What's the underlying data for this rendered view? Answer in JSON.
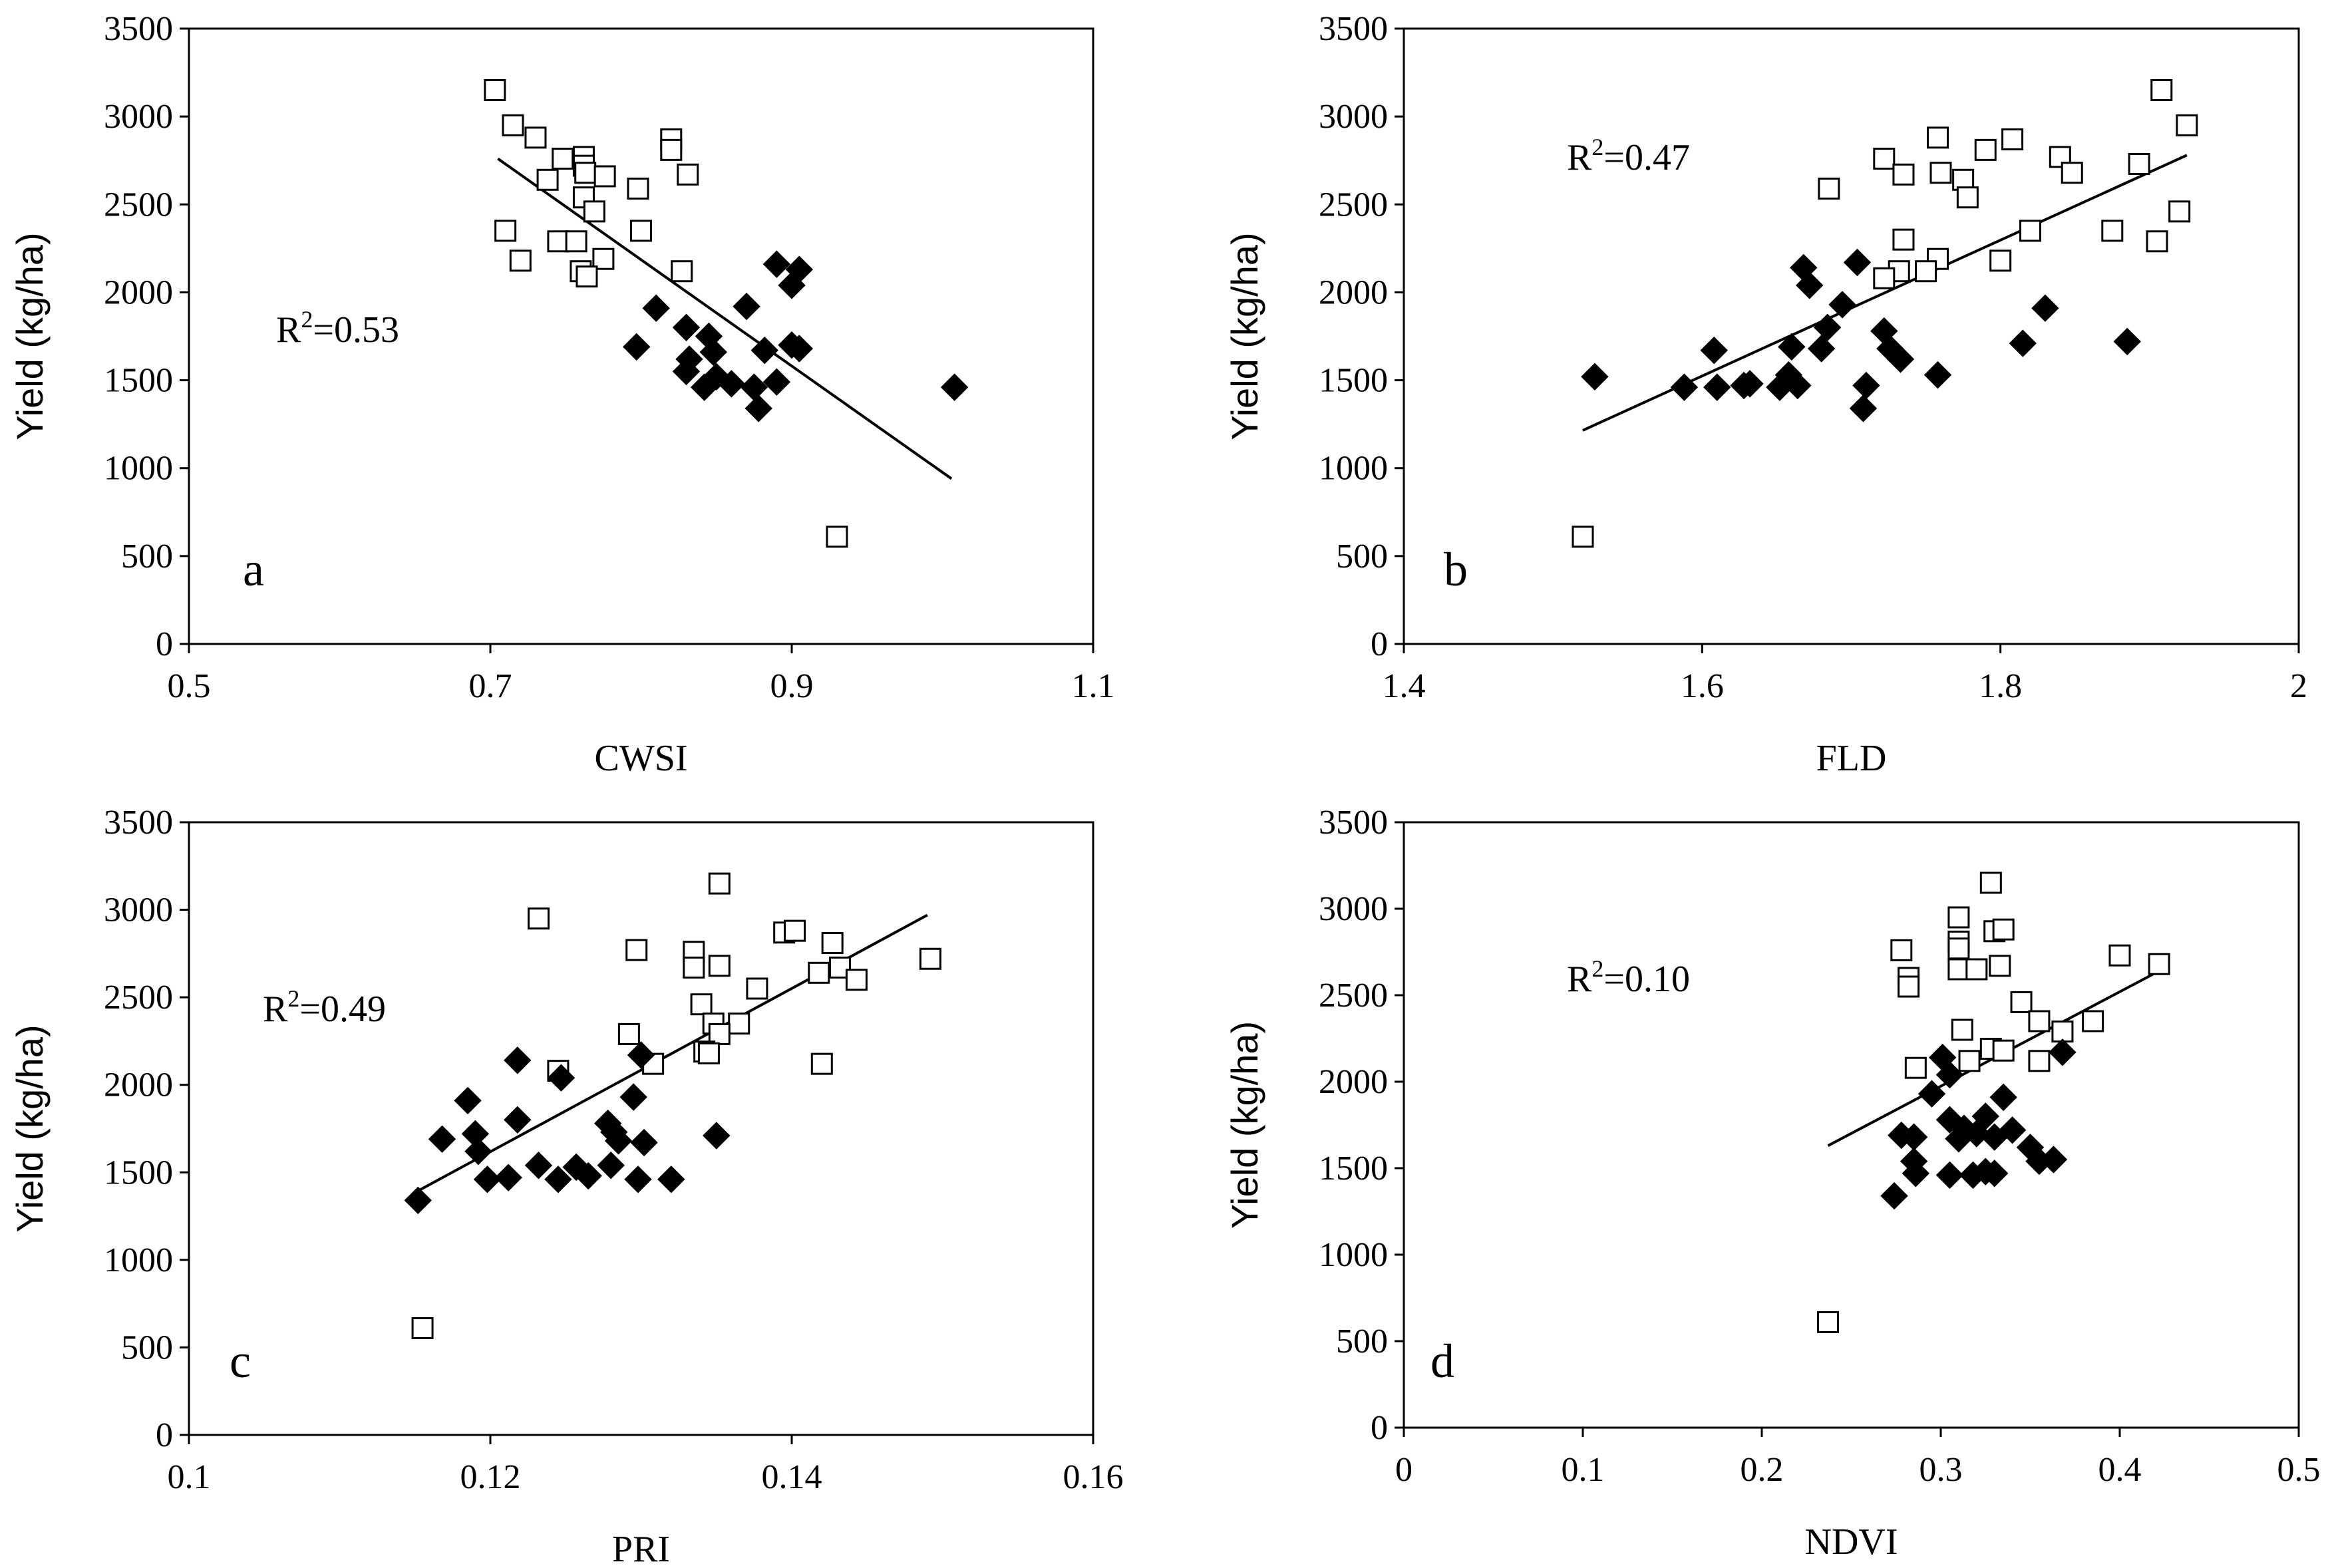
{
  "chart_data": [
    {
      "type": "scatter",
      "panel_letter": "a",
      "xlabel": "CWSI",
      "ylabel": "Yield (kg/ha)",
      "xlim": [
        0.5,
        1.1
      ],
      "ylim": [
        0,
        3500
      ],
      "xticks": [
        "0.5",
        "0.7",
        "0.9",
        "1.1"
      ],
      "yticks": [
        "0",
        "500",
        "1000",
        "1500",
        "2000",
        "2500",
        "3000",
        "3500"
      ],
      "r2_prefix": "R",
      "r2_sup": "2",
      "r2_value": "=0.53",
      "trendline": [
        [
          0.705,
          2760
        ],
        [
          1.006,
          940
        ]
      ],
      "series": [
        {
          "name": "open squares",
          "points": [
            [
              0.703,
              3150
            ],
            [
              0.715,
              2950
            ],
            [
              0.73,
              2880
            ],
            [
              0.748,
              2760
            ],
            [
              0.762,
              2770
            ],
            [
              0.762,
              2720
            ],
            [
              0.763,
              2680
            ],
            [
              0.738,
              2640
            ],
            [
              0.776,
              2660
            ],
            [
              0.762,
              2540
            ],
            [
              0.769,
              2460
            ],
            [
              0.798,
              2590
            ],
            [
              0.71,
              2350
            ],
            [
              0.8,
              2350
            ],
            [
              0.745,
              2290
            ],
            [
              0.757,
              2290
            ],
            [
              0.72,
              2180
            ],
            [
              0.775,
              2190
            ],
            [
              0.76,
              2120
            ],
            [
              0.764,
              2090
            ],
            [
              0.82,
              2870
            ],
            [
              0.82,
              2810
            ],
            [
              0.831,
              2670
            ],
            [
              0.827,
              2120
            ],
            [
              0.93,
              610
            ]
          ]
        },
        {
          "name": "filled diamonds",
          "points": [
            [
              0.81,
              1910
            ],
            [
              0.83,
              1800
            ],
            [
              0.845,
              1750
            ],
            [
              0.87,
              1920
            ],
            [
              0.89,
              2160
            ],
            [
              0.9,
              2040
            ],
            [
              0.905,
              2130
            ],
            [
              0.797,
              1690
            ],
            [
              0.832,
              1620
            ],
            [
              0.848,
              1660
            ],
            [
              0.882,
              1670
            ],
            [
              0.9,
              1700
            ],
            [
              0.905,
              1680
            ],
            [
              0.83,
              1550
            ],
            [
              0.85,
              1520
            ],
            [
              0.842,
              1460
            ],
            [
              0.86,
              1480
            ],
            [
              0.875,
              1460
            ],
            [
              0.89,
              1490
            ],
            [
              0.878,
              1340
            ],
            [
              1.008,
              1460
            ]
          ]
        }
      ]
    },
    {
      "type": "scatter",
      "panel_letter": "b",
      "xlabel": "FLD",
      "ylabel": "Yield (kg/ha)",
      "xlim": [
        1.4,
        2.0
      ],
      "ylim": [
        0,
        3500
      ],
      "xticks": [
        "1.4",
        "1.6",
        "1.8",
        "2"
      ],
      "yticks": [
        "0",
        "500",
        "1000",
        "1500",
        "2000",
        "2500",
        "3000",
        "3500"
      ],
      "r2_prefix": "R",
      "r2_sup": "2",
      "r2_value": "=0.47",
      "trendline": [
        [
          1.52,
          1215
        ],
        [
          1.925,
          2780
        ]
      ],
      "series": [
        {
          "name": "open squares",
          "points": [
            [
              1.908,
              3150
            ],
            [
              1.925,
              2950
            ],
            [
              1.758,
              2880
            ],
            [
              1.808,
              2870
            ],
            [
              1.79,
              2810
            ],
            [
              1.722,
              2760
            ],
            [
              1.84,
              2770
            ],
            [
              1.893,
              2730
            ],
            [
              1.76,
              2680
            ],
            [
              1.735,
              2670
            ],
            [
              1.848,
              2680
            ],
            [
              1.775,
              2640
            ],
            [
              1.685,
              2590
            ],
            [
              1.778,
              2540
            ],
            [
              1.92,
              2460
            ],
            [
              1.82,
              2350
            ],
            [
              1.875,
              2350
            ],
            [
              1.905,
              2290
            ],
            [
              1.735,
              2300
            ],
            [
              1.758,
              2190
            ],
            [
              1.8,
              2180
            ],
            [
              1.732,
              2120
            ],
            [
              1.75,
              2120
            ],
            [
              1.722,
              2080
            ],
            [
              1.52,
              610
            ]
          ]
        },
        {
          "name": "filled diamonds",
          "points": [
            [
              1.528,
              1520
            ],
            [
              1.608,
              1670
            ],
            [
              1.588,
              1460
            ],
            [
              1.61,
              1460
            ],
            [
              1.628,
              1470
            ],
            [
              1.632,
              1480
            ],
            [
              1.652,
              1460
            ],
            [
              1.664,
              1470
            ],
            [
              1.658,
              1530
            ],
            [
              1.66,
              1690
            ],
            [
              1.668,
              2140
            ],
            [
              1.672,
              2040
            ],
            [
              1.684,
              1800
            ],
            [
              1.694,
              1930
            ],
            [
              1.704,
              2170
            ],
            [
              1.722,
              1780
            ],
            [
              1.726,
              1680
            ],
            [
              1.733,
              1620
            ],
            [
              1.68,
              1680
            ],
            [
              1.71,
              1470
            ],
            [
              1.708,
              1340
            ],
            [
              1.758,
              1530
            ],
            [
              1.815,
              1710
            ],
            [
              1.83,
              1910
            ],
            [
              1.885,
              1720
            ]
          ]
        }
      ]
    },
    {
      "type": "scatter",
      "panel_letter": "c",
      "xlabel": "PRI",
      "ylabel": "Yield (kg/ha)",
      "xlim": [
        0.1,
        0.16
      ],
      "ylim": [
        0,
        3500
      ],
      "xticks": [
        "0.1",
        "0.12",
        "0.14",
        "0.16"
      ],
      "yticks": [
        "0",
        "500",
        "1000",
        "1500",
        "2000",
        "2500",
        "3000",
        "3500"
      ],
      "r2_prefix": "R",
      "r2_sup": "2",
      "r2_value": "=0.49",
      "trendline": [
        [
          0.115,
          1385
        ],
        [
          0.149,
          2970
        ]
      ],
      "series": [
        {
          "name": "open squares",
          "points": [
            [
              0.1232,
              2950
            ],
            [
              0.1352,
              3150
            ],
            [
              0.1395,
              2870
            ],
            [
              0.1402,
              2880
            ],
            [
              0.1427,
              2810
            ],
            [
              0.1297,
              2770
            ],
            [
              0.1335,
              2760
            ],
            [
              0.1352,
              2680
            ],
            [
              0.1335,
              2670
            ],
            [
              0.1432,
              2670
            ],
            [
              0.1418,
              2640
            ],
            [
              0.1443,
              2600
            ],
            [
              0.1492,
              2720
            ],
            [
              0.1377,
              2550
            ],
            [
              0.134,
              2460
            ],
            [
              0.1348,
              2350
            ],
            [
              0.1365,
              2350
            ],
            [
              0.1292,
              2290
            ],
            [
              0.1352,
              2290
            ],
            [
              0.1342,
              2190
            ],
            [
              0.1345,
              2180
            ],
            [
              0.1308,
              2120
            ],
            [
              0.142,
              2120
            ],
            [
              0.1245,
              2080
            ],
            [
              0.1155,
              610
            ]
          ]
        },
        {
          "name": "filled diamonds",
          "points": [
            [
              0.1152,
              1340
            ],
            [
              0.1168,
              1690
            ],
            [
              0.1185,
              1910
            ],
            [
              0.1192,
              1620
            ],
            [
              0.119,
              1720
            ],
            [
              0.1198,
              1460
            ],
            [
              0.1212,
              1470
            ],
            [
              0.1218,
              2140
            ],
            [
              0.1218,
              1800
            ],
            [
              0.1232,
              1540
            ],
            [
              0.1245,
              1460
            ],
            [
              0.1247,
              2040
            ],
            [
              0.1257,
              1530
            ],
            [
              0.1265,
              1480
            ],
            [
              0.1278,
              1780
            ],
            [
              0.128,
              1540
            ],
            [
              0.1282,
              1730
            ],
            [
              0.1285,
              1680
            ],
            [
              0.1295,
              1930
            ],
            [
              0.13,
              2170
            ],
            [
              0.1298,
              1460
            ],
            [
              0.1302,
              1670
            ],
            [
              0.132,
              1460
            ],
            [
              0.135,
              1710
            ]
          ]
        }
      ]
    },
    {
      "type": "scatter",
      "panel_letter": "d",
      "xlabel": "NDVI",
      "ylabel": "Yield (kg/ha)",
      "xlim": [
        0,
        0.5
      ],
      "ylim": [
        0,
        3500
      ],
      "xticks": [
        "0",
        "0.1",
        "0.2",
        "0.3",
        "0.4",
        "0.5"
      ],
      "yticks": [
        "0",
        "500",
        "1000",
        "1500",
        "2000",
        "2500",
        "3000",
        "3500"
      ],
      "r2_prefix": "R",
      "r2_sup": "2",
      "r2_value": "=0.10",
      "trendline": [
        [
          0.237,
          1630
        ],
        [
          0.422,
          2640
        ]
      ],
      "series": [
        {
          "name": "open squares",
          "points": [
            [
              0.328,
              3150
            ],
            [
              0.31,
              2950
            ],
            [
              0.33,
              2870
            ],
            [
              0.335,
              2880
            ],
            [
              0.31,
              2810
            ],
            [
              0.278,
              2760
            ],
            [
              0.31,
              2770
            ],
            [
              0.4,
              2730
            ],
            [
              0.422,
              2680
            ],
            [
              0.333,
              2670
            ],
            [
              0.31,
              2650
            ],
            [
              0.32,
              2650
            ],
            [
              0.282,
              2600
            ],
            [
              0.282,
              2550
            ],
            [
              0.345,
              2460
            ],
            [
              0.355,
              2350
            ],
            [
              0.385,
              2350
            ],
            [
              0.368,
              2290
            ],
            [
              0.312,
              2300
            ],
            [
              0.328,
              2190
            ],
            [
              0.335,
              2180
            ],
            [
              0.355,
              2120
            ],
            [
              0.316,
              2120
            ],
            [
              0.286,
              2080
            ],
            [
              0.237,
              610
            ]
          ]
        },
        {
          "name": "filled diamonds",
          "points": [
            [
              0.301,
              2140
            ],
            [
              0.305,
              2040
            ],
            [
              0.295,
              1930
            ],
            [
              0.335,
              1910
            ],
            [
              0.368,
              2170
            ],
            [
              0.305,
              1780
            ],
            [
              0.325,
              1800
            ],
            [
              0.313,
              1730
            ],
            [
              0.32,
              1700
            ],
            [
              0.34,
              1720
            ],
            [
              0.285,
              1680
            ],
            [
              0.278,
              1690
            ],
            [
              0.31,
              1670
            ],
            [
              0.33,
              1680
            ],
            [
              0.35,
              1620
            ],
            [
              0.285,
              1540
            ],
            [
              0.355,
              1540
            ],
            [
              0.363,
              1550
            ],
            [
              0.286,
              1470
            ],
            [
              0.305,
              1460
            ],
            [
              0.318,
              1460
            ],
            [
              0.325,
              1480
            ],
            [
              0.33,
              1470
            ],
            [
              0.274,
              1340
            ]
          ]
        }
      ]
    }
  ]
}
